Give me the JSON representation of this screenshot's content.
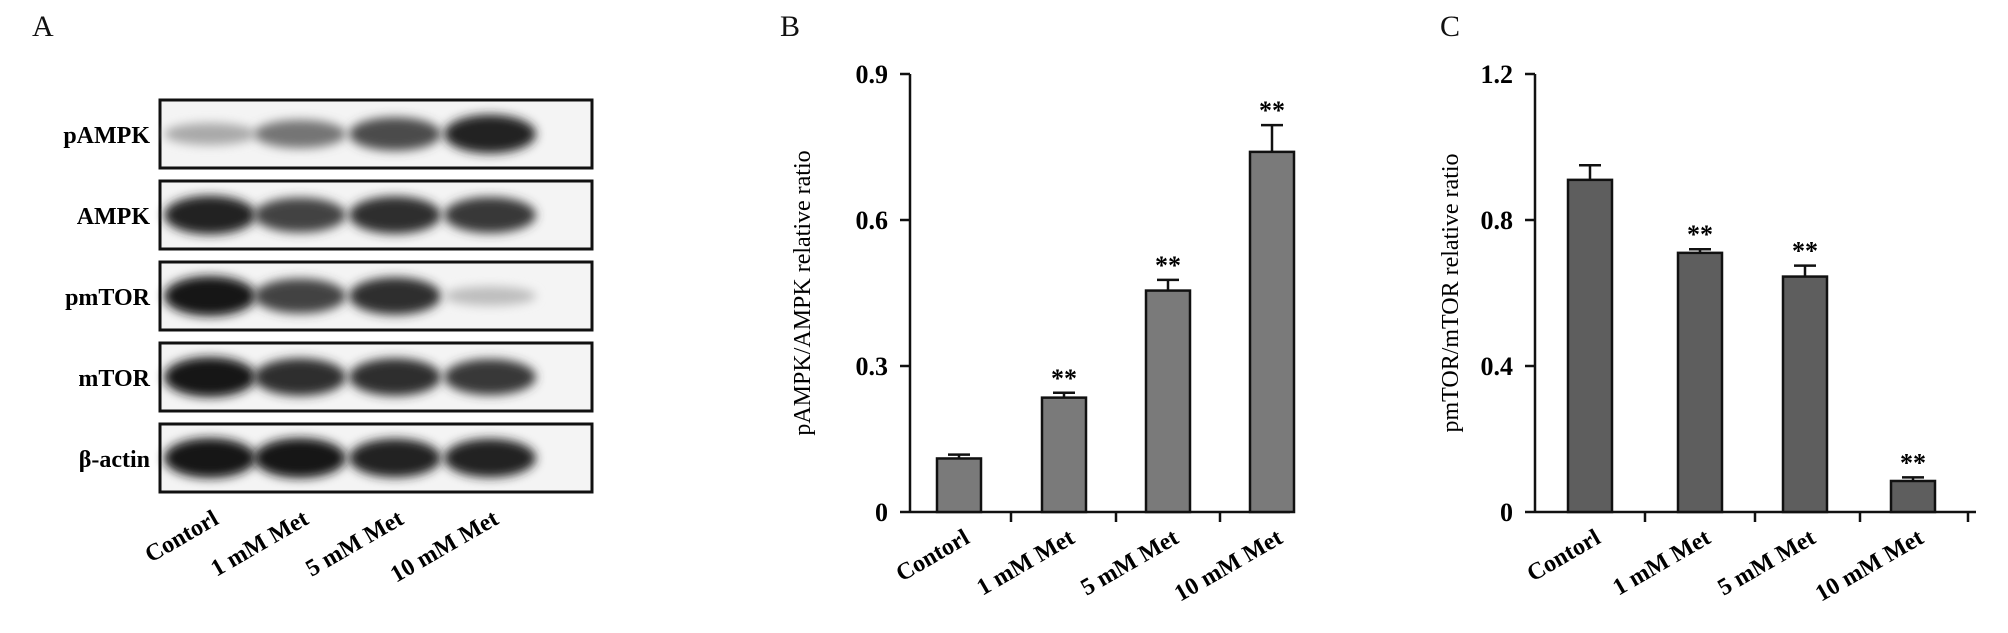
{
  "panels": {
    "a": "A",
    "b": "B",
    "c": "C"
  },
  "blot": {
    "rows": [
      "pAMPK",
      "AMPK",
      "pmTOR",
      "mTOR",
      "β-actin"
    ],
    "lanes": [
      "Contorl",
      "1 mM Met",
      "5 mM Met",
      "10 mM Met"
    ],
    "band_intensity": [
      [
        0.3,
        0.55,
        0.75,
        0.95
      ],
      [
        0.95,
        0.8,
        0.9,
        0.85
      ],
      [
        1.0,
        0.8,
        0.9,
        0.2
      ],
      [
        1.0,
        0.9,
        0.9,
        0.85
      ],
      [
        1.0,
        1.0,
        0.95,
        0.95
      ]
    ]
  },
  "chart_data": [
    {
      "type": "bar",
      "categories": [
        "Contorl",
        "1 mM Met",
        "5 mM Met",
        "10 mM Met"
      ],
      "values": [
        0.11,
        0.235,
        0.455,
        0.74
      ],
      "errors": [
        0.008,
        0.01,
        0.022,
        0.055
      ],
      "significance": [
        "",
        "**",
        "**",
        "**"
      ],
      "ylabel": "pAMPK/AMPK relative ratio",
      "ylim": [
        0,
        0.9
      ],
      "yticks": [
        "0",
        "0.3",
        "0.6",
        "0.9"
      ],
      "ytick_values": [
        0,
        0.3,
        0.6,
        0.9
      ],
      "bar_color": "#7a7a7a"
    },
    {
      "type": "bar",
      "categories": [
        "Contorl",
        "1 mM Met",
        "5 mM Met",
        "10 mM Met"
      ],
      "values": [
        0.91,
        0.71,
        0.645,
        0.085
      ],
      "errors": [
        0.04,
        0.01,
        0.03,
        0.01
      ],
      "significance": [
        "",
        "**",
        "**",
        "**"
      ],
      "ylabel": "pmTOR/mTOR relative ratio",
      "ylim": [
        0,
        1.2
      ],
      "yticks": [
        "0",
        "0.4",
        "0.8",
        "1.2"
      ],
      "ytick_values": [
        0,
        0.4,
        0.8,
        1.2
      ],
      "bar_color": "#5e5e5e"
    }
  ]
}
